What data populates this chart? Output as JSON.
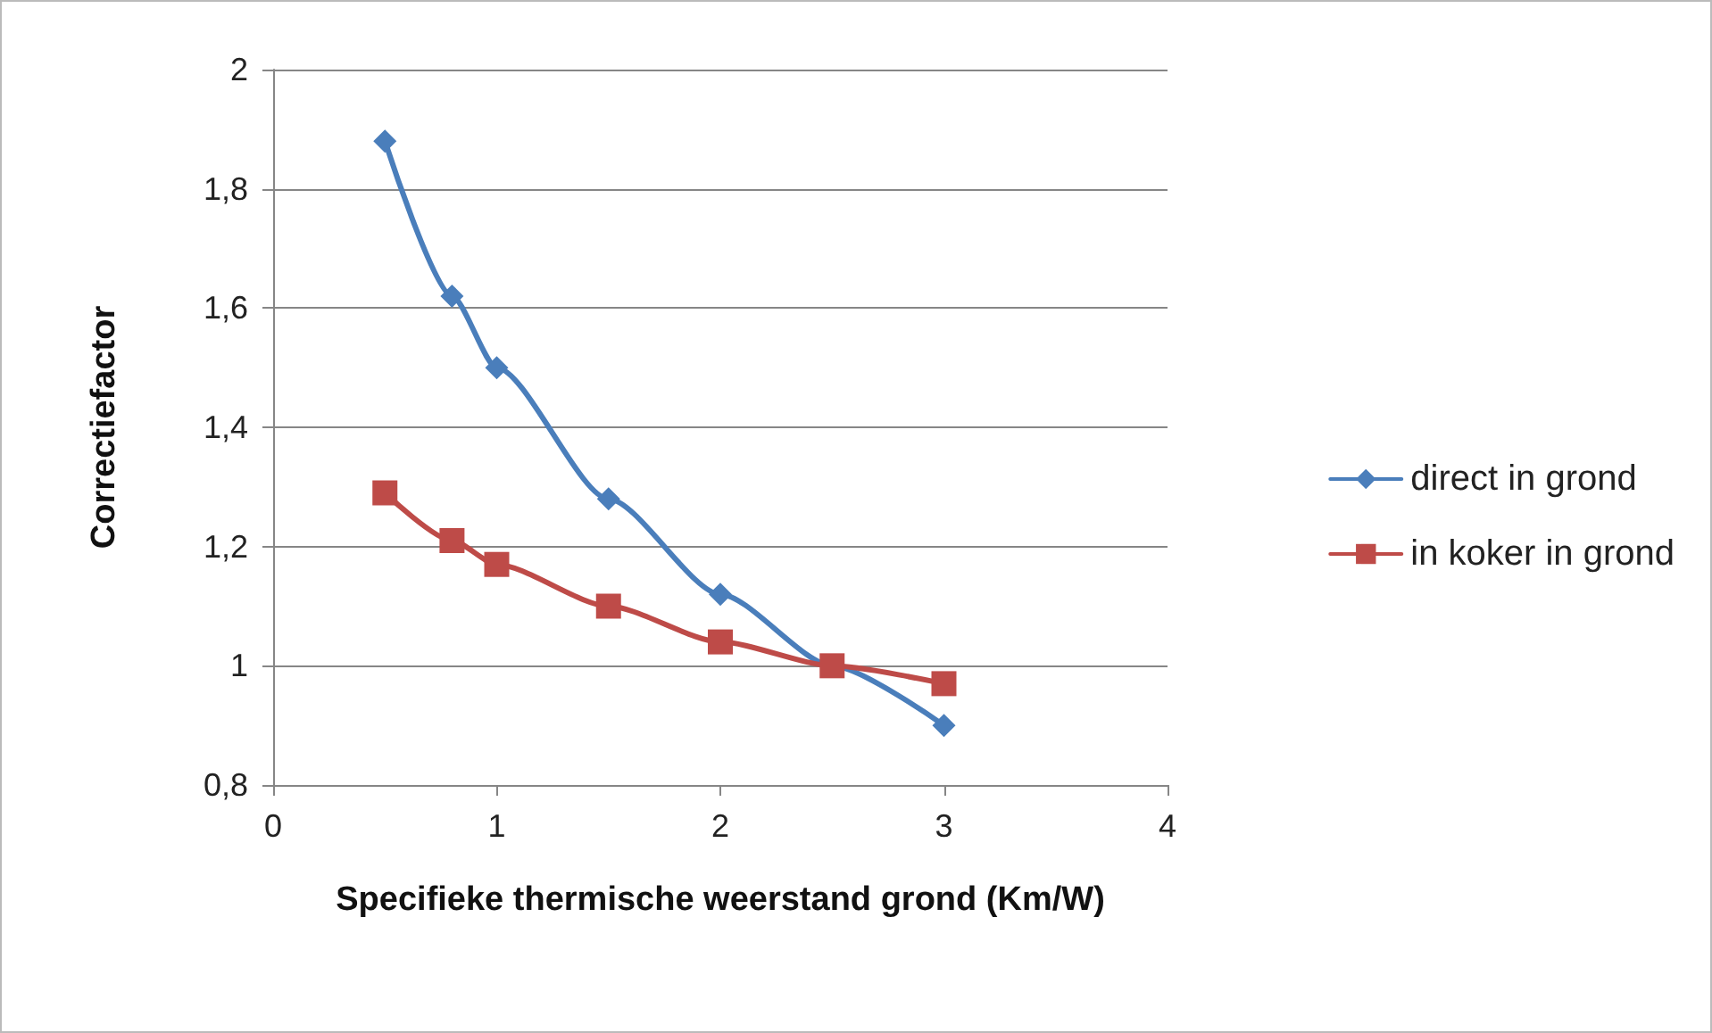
{
  "chart_data": {
    "type": "line",
    "xlabel": "Specifieke thermische weerstand grond (Km/W)",
    "ylabel": "Correctiefactor",
    "series": [
      {
        "name": "direct in grond",
        "color": "#4a7ebb",
        "marker": "diamond",
        "x": [
          0.5,
          0.8,
          1,
          1.5,
          2,
          2.5,
          3
        ],
        "values": [
          1.88,
          1.62,
          1.5,
          1.28,
          1.12,
          1.0,
          0.9
        ]
      },
      {
        "name": "in koker in grond",
        "color": "#be4b48",
        "marker": "square",
        "x": [
          0.5,
          0.8,
          1,
          1.5,
          2,
          2.5,
          3
        ],
        "values": [
          1.29,
          1.21,
          1.17,
          1.1,
          1.04,
          1.0,
          0.97
        ]
      }
    ],
    "xlim": [
      0,
      4
    ],
    "xticks": [
      0,
      1,
      2,
      3,
      4
    ],
    "ylim": [
      0.8,
      2
    ],
    "yticks": [
      {
        "value": 0.8,
        "label": "0,8"
      },
      {
        "value": 1,
        "label": "1"
      },
      {
        "value": 1.2,
        "label": "1,2"
      },
      {
        "value": 1.4,
        "label": "1,4"
      },
      {
        "value": 1.6,
        "label": "1,6"
      },
      {
        "value": 1.8,
        "label": "1,8"
      },
      {
        "value": 2,
        "label": "2"
      }
    ],
    "grid": "y",
    "legend": "right",
    "line_style": "solid"
  }
}
